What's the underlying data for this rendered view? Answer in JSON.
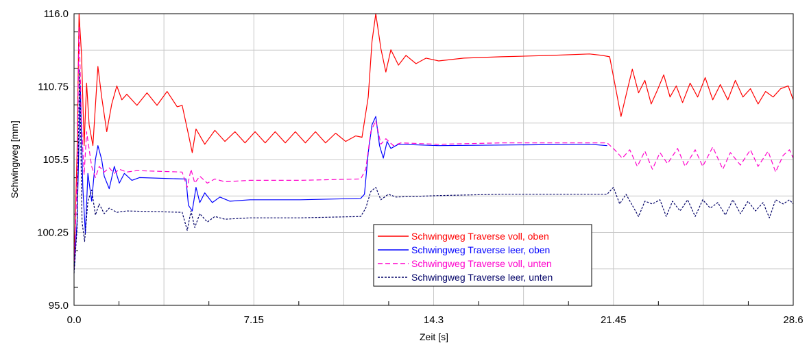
{
  "chart_data": {
    "type": "line",
    "title": "",
    "xlabel": "Zeit [s]",
    "ylabel": "Schwingweg [mm]",
    "xlim": [
      0,
      28.6
    ],
    "ylim": [
      95.0,
      116.0
    ],
    "x_ticks": [
      "0.0",
      "7.15",
      "14.3",
      "21.45",
      "28.6"
    ],
    "y_ticks": [
      "95.0",
      "100.25",
      "105.5",
      "110.75",
      "116.0"
    ],
    "grid": true,
    "legend_position": "bottom-center",
    "series": [
      {
        "name": "Schwingweg Traverse voll, oben",
        "color": "#ff0000",
        "dash": "solid",
        "points": [
          [
            0,
            97.8
          ],
          [
            0.12,
            106.0
          ],
          [
            0.2,
            116.0
          ],
          [
            0.3,
            113.0
          ],
          [
            0.4,
            106.5
          ],
          [
            0.5,
            111.0
          ],
          [
            0.6,
            108.0
          ],
          [
            0.75,
            106.5
          ],
          [
            0.95,
            112.2
          ],
          [
            1.1,
            110.0
          ],
          [
            1.3,
            107.5
          ],
          [
            1.5,
            109.5
          ],
          [
            1.7,
            110.8
          ],
          [
            1.9,
            109.8
          ],
          [
            2.1,
            110.2
          ],
          [
            2.5,
            109.4
          ],
          [
            2.9,
            110.3
          ],
          [
            3.3,
            109.4
          ],
          [
            3.7,
            110.4
          ],
          [
            4.1,
            109.3
          ],
          [
            4.3,
            109.4
          ],
          [
            4.55,
            107.3
          ],
          [
            4.7,
            106.0
          ],
          [
            4.85,
            107.7
          ],
          [
            5.2,
            106.6
          ],
          [
            5.6,
            107.6
          ],
          [
            6.0,
            106.8
          ],
          [
            6.4,
            107.5
          ],
          [
            6.8,
            106.7
          ],
          [
            7.2,
            107.5
          ],
          [
            7.6,
            106.7
          ],
          [
            8.0,
            107.5
          ],
          [
            8.4,
            106.7
          ],
          [
            8.8,
            107.5
          ],
          [
            9.2,
            106.7
          ],
          [
            9.6,
            107.5
          ],
          [
            10.0,
            106.7
          ],
          [
            10.4,
            107.4
          ],
          [
            10.8,
            106.8
          ],
          [
            11.2,
            107.2
          ],
          [
            11.45,
            107.1
          ],
          [
            11.7,
            110.0
          ],
          [
            11.85,
            114.0
          ],
          [
            12.0,
            116.0
          ],
          [
            12.2,
            113.5
          ],
          [
            12.4,
            111.8
          ],
          [
            12.6,
            113.4
          ],
          [
            12.9,
            112.3
          ],
          [
            13.2,
            113.0
          ],
          [
            13.6,
            112.4
          ],
          [
            14.0,
            112.8
          ],
          [
            14.5,
            112.6
          ],
          [
            15.5,
            112.8
          ],
          [
            17.0,
            112.9
          ],
          [
            19.0,
            113.0
          ],
          [
            20.5,
            113.1
          ],
          [
            21.0,
            113.0
          ],
          [
            21.3,
            112.9
          ],
          [
            21.5,
            111.0
          ],
          [
            21.75,
            108.6
          ],
          [
            22.0,
            110.5
          ],
          [
            22.2,
            112.0
          ],
          [
            22.45,
            110.3
          ],
          [
            22.7,
            111.2
          ],
          [
            22.95,
            109.5
          ],
          [
            23.2,
            110.5
          ],
          [
            23.45,
            111.6
          ],
          [
            23.7,
            110.0
          ],
          [
            23.95,
            110.8
          ],
          [
            24.2,
            109.6
          ],
          [
            24.5,
            111.0
          ],
          [
            24.8,
            110.0
          ],
          [
            25.1,
            111.4
          ],
          [
            25.4,
            109.8
          ],
          [
            25.7,
            110.9
          ],
          [
            26.0,
            109.8
          ],
          [
            26.3,
            111.2
          ],
          [
            26.6,
            110.0
          ],
          [
            26.9,
            110.6
          ],
          [
            27.2,
            109.5
          ],
          [
            27.5,
            110.4
          ],
          [
            27.8,
            110.0
          ],
          [
            28.1,
            110.6
          ],
          [
            28.4,
            110.8
          ],
          [
            28.6,
            109.8
          ]
        ]
      },
      {
        "name": "Schwingweg Traverse leer, oben",
        "color": "#0000ff",
        "dash": "solid",
        "points": [
          [
            0,
            97.5
          ],
          [
            0.12,
            101.0
          ],
          [
            0.25,
            110.8
          ],
          [
            0.35,
            103.5
          ],
          [
            0.45,
            100.2
          ],
          [
            0.55,
            104.5
          ],
          [
            0.7,
            102.5
          ],
          [
            0.85,
            105.5
          ],
          [
            0.95,
            106.5
          ],
          [
            1.1,
            105.5
          ],
          [
            1.2,
            104.3
          ],
          [
            1.4,
            103.4
          ],
          [
            1.6,
            105.0
          ],
          [
            1.8,
            103.8
          ],
          [
            2.0,
            104.5
          ],
          [
            2.3,
            104.0
          ],
          [
            2.6,
            104.2
          ],
          [
            4.3,
            104.1
          ],
          [
            4.45,
            104.1
          ],
          [
            4.55,
            102.2
          ],
          [
            4.7,
            101.8
          ],
          [
            4.85,
            103.5
          ],
          [
            5.0,
            102.4
          ],
          [
            5.2,
            103.1
          ],
          [
            5.5,
            102.4
          ],
          [
            5.8,
            102.8
          ],
          [
            6.2,
            102.5
          ],
          [
            7.0,
            102.6
          ],
          [
            9.0,
            102.6
          ],
          [
            11.4,
            102.7
          ],
          [
            11.55,
            103.0
          ],
          [
            11.7,
            106.0
          ],
          [
            11.85,
            108.0
          ],
          [
            12.0,
            108.6
          ],
          [
            12.15,
            106.5
          ],
          [
            12.3,
            105.6
          ],
          [
            12.45,
            106.8
          ],
          [
            12.6,
            106.3
          ],
          [
            12.9,
            106.6
          ],
          [
            14.5,
            106.5
          ],
          [
            20.5,
            106.6
          ],
          [
            21.2,
            106.5
          ]
        ]
      },
      {
        "name": "Schwingweg Traverse voll, unten",
        "color": "#ff00cc",
        "dash": "dashed",
        "points": [
          [
            0,
            97.6
          ],
          [
            0.12,
            104.0
          ],
          [
            0.2,
            115.0
          ],
          [
            0.3,
            108.0
          ],
          [
            0.4,
            104.4
          ],
          [
            0.5,
            107.5
          ],
          [
            0.7,
            105.0
          ],
          [
            0.85,
            104.2
          ],
          [
            1.0,
            105.0
          ],
          [
            1.2,
            104.6
          ],
          [
            1.4,
            104.9
          ],
          [
            1.6,
            104.5
          ],
          [
            1.8,
            104.8
          ],
          [
            2.1,
            104.6
          ],
          [
            2.5,
            104.7
          ],
          [
            4.3,
            104.6
          ],
          [
            4.5,
            103.5
          ],
          [
            4.65,
            104.8
          ],
          [
            4.8,
            103.8
          ],
          [
            5.0,
            104.3
          ],
          [
            5.3,
            103.8
          ],
          [
            5.6,
            104.1
          ],
          [
            6.0,
            103.9
          ],
          [
            7.0,
            104.0
          ],
          [
            9.0,
            104.0
          ],
          [
            11.4,
            104.1
          ],
          [
            11.6,
            104.8
          ],
          [
            11.8,
            107.5
          ],
          [
            12.0,
            108.3
          ],
          [
            12.2,
            106.6
          ],
          [
            12.4,
            107.0
          ],
          [
            12.7,
            106.5
          ],
          [
            13.0,
            106.7
          ],
          [
            14.5,
            106.6
          ],
          [
            17.0,
            106.7
          ],
          [
            20.0,
            106.7
          ],
          [
            21.2,
            106.7
          ],
          [
            21.5,
            106.2
          ],
          [
            21.8,
            105.6
          ],
          [
            22.1,
            106.2
          ],
          [
            22.4,
            105.0
          ],
          [
            22.7,
            106.1
          ],
          [
            23.0,
            104.8
          ],
          [
            23.3,
            106.0
          ],
          [
            23.6,
            105.2
          ],
          [
            24.0,
            106.3
          ],
          [
            24.3,
            105.0
          ],
          [
            24.7,
            106.2
          ],
          [
            25.0,
            105.0
          ],
          [
            25.4,
            106.4
          ],
          [
            25.8,
            104.8
          ],
          [
            26.1,
            106.0
          ],
          [
            26.5,
            105.1
          ],
          [
            26.9,
            106.2
          ],
          [
            27.2,
            105.0
          ],
          [
            27.6,
            106.1
          ],
          [
            27.9,
            104.6
          ],
          [
            28.2,
            105.8
          ],
          [
            28.45,
            106.2
          ],
          [
            28.6,
            105.6
          ]
        ]
      },
      {
        "name": "Schwingweg Traverse leer, unten",
        "color": "#000066",
        "dash": "dotted",
        "points": [
          [
            0,
            97.3
          ],
          [
            0.12,
            100.5
          ],
          [
            0.22,
            112.0
          ],
          [
            0.32,
            101.0
          ],
          [
            0.42,
            99.6
          ],
          [
            0.55,
            102.5
          ],
          [
            0.7,
            103.3
          ],
          [
            0.85,
            101.5
          ],
          [
            1.0,
            102.3
          ],
          [
            1.2,
            101.6
          ],
          [
            1.4,
            102.0
          ],
          [
            1.7,
            101.7
          ],
          [
            2.1,
            101.8
          ],
          [
            4.3,
            101.7
          ],
          [
            4.5,
            100.4
          ],
          [
            4.65,
            101.8
          ],
          [
            4.8,
            100.6
          ],
          [
            5.0,
            101.6
          ],
          [
            5.3,
            101.0
          ],
          [
            5.6,
            101.4
          ],
          [
            6.0,
            101.2
          ],
          [
            7.0,
            101.3
          ],
          [
            9.0,
            101.3
          ],
          [
            11.4,
            101.4
          ],
          [
            11.6,
            102.0
          ],
          [
            11.8,
            103.2
          ],
          [
            12.0,
            103.5
          ],
          [
            12.2,
            102.6
          ],
          [
            12.5,
            103.0
          ],
          [
            12.8,
            102.8
          ],
          [
            14.5,
            102.9
          ],
          [
            17.0,
            103.0
          ],
          [
            20.0,
            103.0
          ],
          [
            21.2,
            103.0
          ],
          [
            21.45,
            103.5
          ],
          [
            21.7,
            102.3
          ],
          [
            21.95,
            103.0
          ],
          [
            22.2,
            102.2
          ],
          [
            22.45,
            101.4
          ],
          [
            22.7,
            102.5
          ],
          [
            23.0,
            102.3
          ],
          [
            23.3,
            102.6
          ],
          [
            23.55,
            101.4
          ],
          [
            23.8,
            102.5
          ],
          [
            24.1,
            101.8
          ],
          [
            24.4,
            102.6
          ],
          [
            24.7,
            101.4
          ],
          [
            25.0,
            102.6
          ],
          [
            25.3,
            102.0
          ],
          [
            25.6,
            102.4
          ],
          [
            25.9,
            101.5
          ],
          [
            26.2,
            102.6
          ],
          [
            26.5,
            101.6
          ],
          [
            26.8,
            102.5
          ],
          [
            27.1,
            101.8
          ],
          [
            27.4,
            102.4
          ],
          [
            27.65,
            101.3
          ],
          [
            27.9,
            102.6
          ],
          [
            28.2,
            102.3
          ],
          [
            28.45,
            102.6
          ],
          [
            28.6,
            102.3
          ]
        ]
      }
    ]
  }
}
